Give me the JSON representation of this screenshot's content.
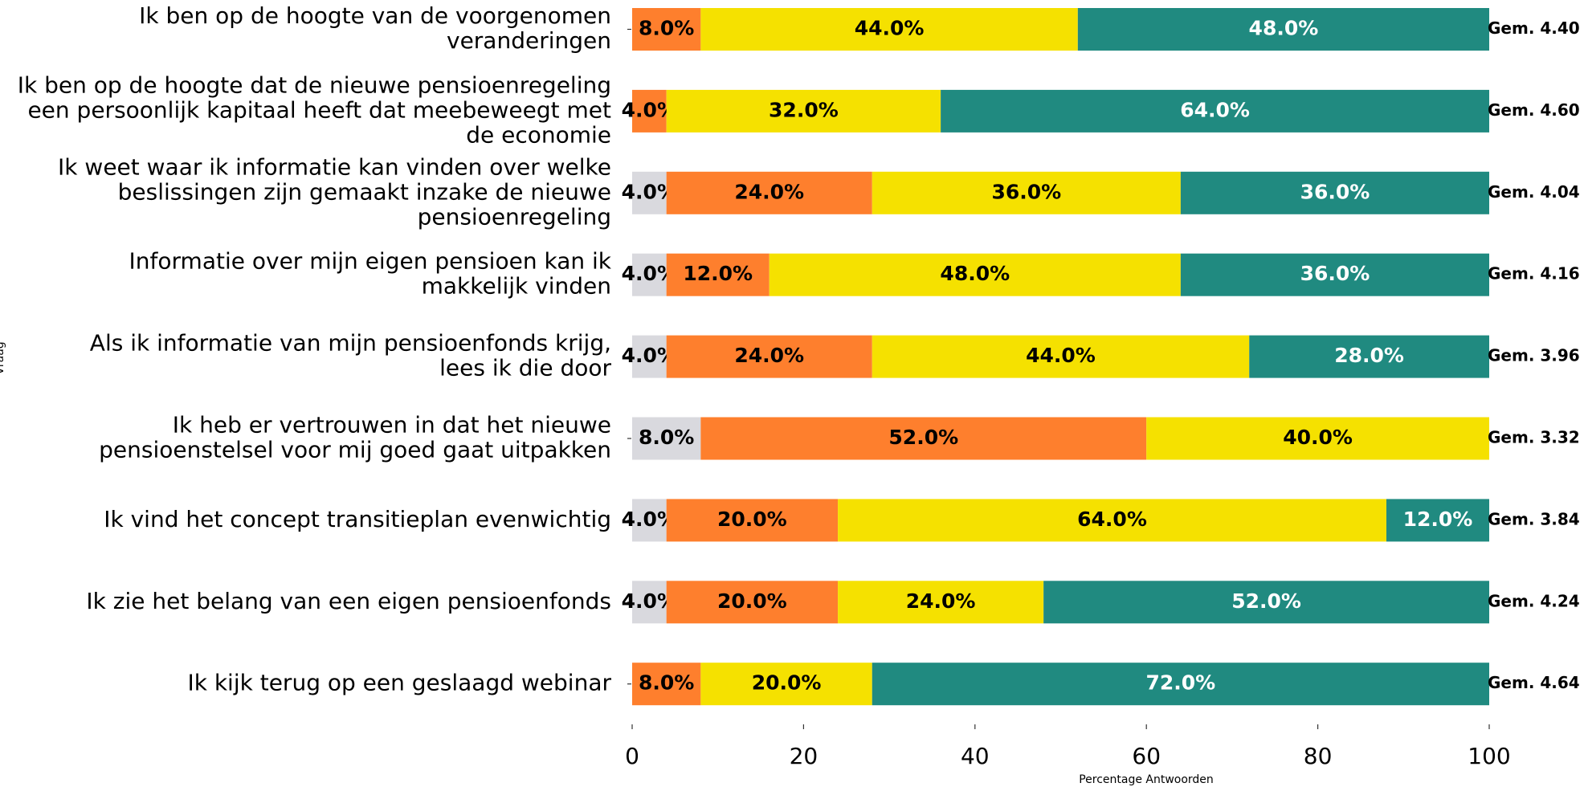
{
  "chart_data": {
    "type": "stacked_bar_horizontal",
    "x_label": "Percentage Antwoorden",
    "y_label": "Vraag",
    "categories": [
      "Ik ben op de hoogte van de voorgenomen\nveranderingen",
      "Ik ben op de hoogte dat de nieuwe pensioenregeling\neen persoonlijk kapitaal heeft dat meebeweegt met\nde economie",
      "Ik weet waar ik informatie kan vinden over welke\nbeslissingen zijn gemaakt inzake de nieuwe\npensioenregeling",
      "Informatie over mijn eigen pensioen kan ik\nmakkelijk vinden",
      "Als ik informatie van mijn pensioenfonds krijg,\nlees ik die door",
      "Ik heb er vertrouwen in dat het nieuwe\npensioenstelsel voor mij goed gaat uitpakken",
      "Ik vind het concept transitieplan evenwichtig",
      "Ik zie het belang van een eigen pensioenfonds",
      "Ik kijk terug op een geslaagd webinar"
    ],
    "series": [
      {
        "color": "#d9d9de",
        "text_color": "#000000",
        "values": [
          null,
          null,
          4,
          4,
          4,
          8,
          4,
          4,
          null
        ],
        "value_labels": [
          null,
          null,
          "4.0%",
          "4.0%",
          "4.0%",
          "8.0%",
          "4.0%",
          "4.0%",
          null
        ]
      },
      {
        "color": "#fe7f2d",
        "text_color": "#000000",
        "values": [
          8,
          4,
          24,
          12,
          24,
          52,
          20,
          20,
          8
        ],
        "value_labels": [
          "8.0%",
          "4.0%",
          "24.0%",
          "12.0%",
          "24.0%",
          "52.0%",
          "20.0%",
          "20.0%",
          "8.0%"
        ]
      },
      {
        "color": "#f5e100",
        "text_color": "#000000",
        "values": [
          44,
          32,
          36,
          48,
          44,
          40,
          64,
          24,
          20
        ],
        "value_labels": [
          "44.0%",
          "32.0%",
          "36.0%",
          "48.0%",
          "44.0%",
          "40.0%",
          "64.0%",
          "24.0%",
          "20.0%"
        ]
      },
      {
        "color": "#208a80",
        "text_color": "#ffffff",
        "values": [
          48,
          64,
          36,
          36,
          28,
          null,
          12,
          52,
          72
        ],
        "value_labels": [
          "48.0%",
          "64.0%",
          "36.0%",
          "36.0%",
          "28.0%",
          null,
          "12.0%",
          "52.0%",
          "72.0%"
        ]
      }
    ],
    "annotations": [
      "Gem. 4.40",
      "Gem. 4.60",
      "Gem. 4.04",
      "Gem. 4.16",
      "Gem. 3.96",
      "Gem. 3.32",
      "Gem. 3.84",
      "Gem. 4.24",
      "Gem. 4.64"
    ],
    "xlim": [
      0,
      100
    ],
    "xticks": [
      0,
      20,
      40,
      60,
      80,
      100
    ],
    "grid": false
  }
}
